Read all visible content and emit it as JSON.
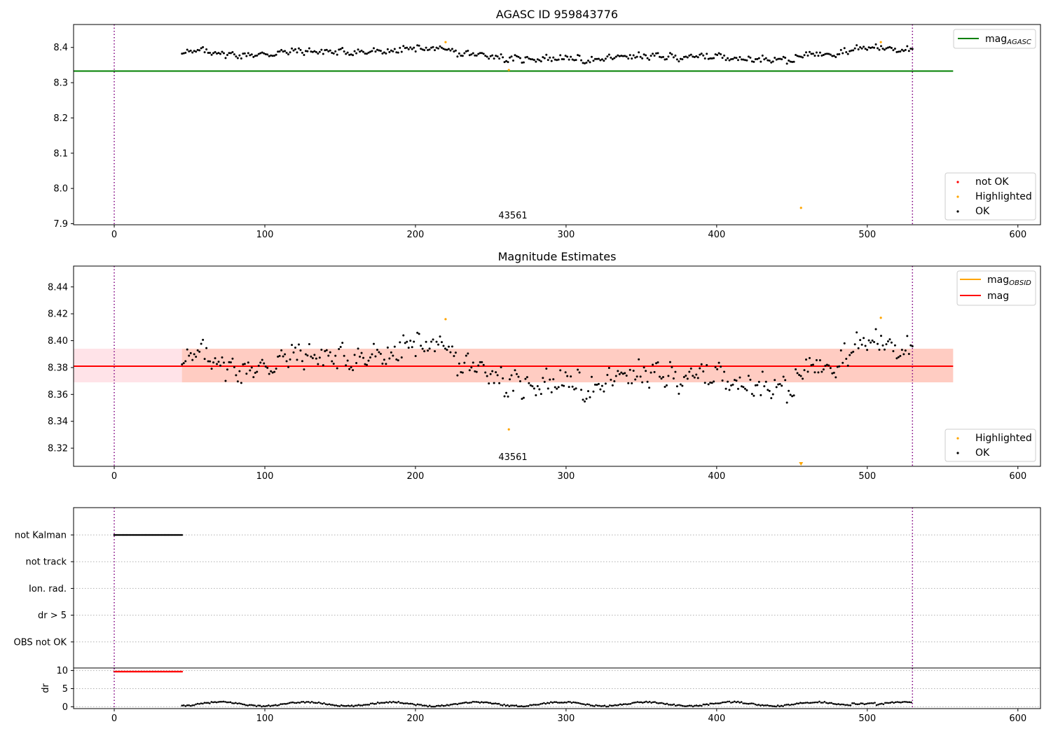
{
  "chart_data": [
    {
      "type": "scatter",
      "title": "AGASC ID 959843776",
      "xlim": [
        -27,
        615
      ],
      "ylim": [
        7.897,
        8.465
      ],
      "xticks": [
        0,
        100,
        200,
        300,
        400,
        500,
        600
      ],
      "yticks": [
        7.9,
        8.0,
        8.1,
        8.2,
        8.3,
        8.4
      ],
      "ytick_labels": [
        "7.9",
        "8.0",
        "8.1",
        "8.2",
        "8.3",
        "8.4"
      ],
      "annotation": "43561",
      "annotation_pos": [
        264,
        7.912
      ],
      "vlines": [
        0,
        530
      ],
      "hlines": [
        {
          "name": "mag_AGASC",
          "y": 8.333,
          "x_range": [
            -27,
            557
          ],
          "color": "#008000"
        }
      ],
      "legend_lines": [
        {
          "label": "mag",
          "sub": "AGASC",
          "color": "#008000"
        }
      ],
      "legend_points": [
        {
          "label": "not OK",
          "color": "#ff0000"
        },
        {
          "label": "Highlighted",
          "color": "#ffa500"
        },
        {
          "label": "OK",
          "color": "#000000"
        }
      ],
      "highlighted": {
        "x": [
          220,
          262,
          456,
          509
        ],
        "y": [
          8.415,
          8.336,
          7.945,
          8.415
        ]
      },
      "ok_series": {
        "x_start": 45,
        "x_end": 530,
        "n": 420
      }
    },
    {
      "type": "scatter",
      "title": "Magnitude Estimates",
      "xlim": [
        -27,
        615
      ],
      "ylim": [
        8.3065,
        8.4555
      ],
      "xticks": [
        0,
        100,
        200,
        300,
        400,
        500,
        600
      ],
      "yticks": [
        8.32,
        8.34,
        8.36,
        8.38,
        8.4,
        8.42,
        8.44
      ],
      "ytick_labels": [
        "8.32",
        "8.34",
        "8.36",
        "8.38",
        "8.40",
        "8.42",
        "8.44"
      ],
      "annotation": "43561",
      "annotation_pos": [
        264,
        8.312
      ],
      "vlines": [
        0,
        530
      ],
      "hlines": [
        {
          "name": "mag",
          "y": 8.381,
          "x_range": [
            -27,
            557
          ],
          "color": "#ff0000"
        }
      ],
      "bands": [
        {
          "y0": 8.369,
          "y1": 8.394,
          "x_range": [
            -27,
            557
          ],
          "color": "#ffc0cb",
          "opacity": 0.45
        },
        {
          "y0": 8.369,
          "y1": 8.394,
          "x_range": [
            45,
            557
          ],
          "color": "#ffa07a",
          "opacity": 0.35
        }
      ],
      "legend_lines": [
        {
          "label": "mag",
          "sub": "OBSID",
          "color": "#ffa500"
        },
        {
          "label": "mag",
          "sub": "",
          "color": "#ff0000"
        }
      ],
      "legend_points": [
        {
          "label": "Highlighted",
          "color": "#ffa500"
        },
        {
          "label": "OK",
          "color": "#000000"
        }
      ],
      "highlighted": {
        "x": [
          220,
          262,
          509
        ],
        "y": [
          8.416,
          8.334,
          8.417
        ]
      },
      "offscale_marker": {
        "x": 456,
        "color": "#ffa500"
      },
      "ok_series": {
        "x_start": 45,
        "x_end": 530,
        "n": 420
      }
    },
    {
      "type": "scatter",
      "title": "",
      "xlim": [
        -27,
        615
      ],
      "xticks": [
        0,
        100,
        200,
        300,
        400,
        500,
        600
      ],
      "flag_rows": [
        "not Kalman",
        "not track",
        "Ion. rad.",
        "dr > 5",
        "OBS not OK"
      ],
      "flag_segments": [
        {
          "row": "not Kalman",
          "x_start": 0,
          "x_end": 45
        }
      ],
      "dr": {
        "ylabel": "dr",
        "ylim": [
          -0.5,
          10.5
        ],
        "yticks": [
          0,
          5,
          10
        ],
        "red_range": [
          0,
          45
        ],
        "red_value": 9.7,
        "black_range": [
          45,
          530
        ]
      },
      "vlines": [
        0,
        530
      ]
    }
  ]
}
